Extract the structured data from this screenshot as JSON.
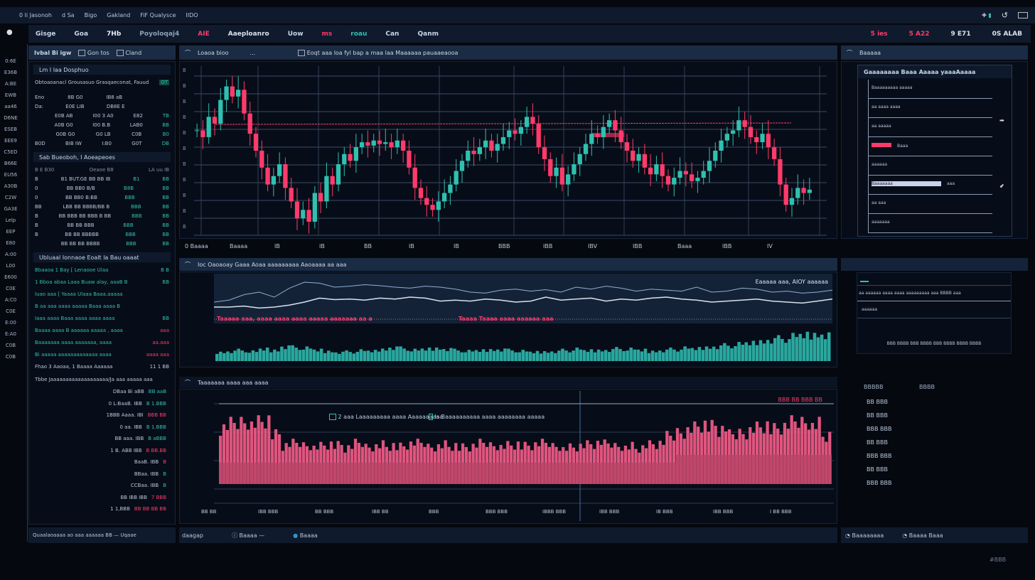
{
  "topbar": {
    "title": "0 li Jasonoh",
    "menus": [
      "d Sa",
      "Bigo",
      "Gakland",
      "FiF Qualysce",
      "IIDO"
    ],
    "right_icons": [
      "plus-icon",
      "refresh-icon",
      "window-icon"
    ]
  },
  "toolbar": {
    "items": [
      {
        "label": "Gisge",
        "color": "#c9d6e6"
      },
      {
        "label": "Goa",
        "color": "#c9d6e6"
      },
      {
        "label": "7Hb",
        "color": "#e6eef8"
      },
      {
        "label": "Poyoloqaj4",
        "color": "#8fa0b6"
      },
      {
        "label": "AIE",
        "color": "#ff3b6b"
      },
      {
        "label": "Aaeploanro",
        "color": "#d8e2ee"
      },
      {
        "label": "Uow",
        "color": "#c9d6e6"
      },
      {
        "label": "ms",
        "color": "#ff3b6b"
      },
      {
        "label": "roau",
        "color": "#2fc0b0"
      },
      {
        "label": "Can",
        "color": "#c9d6e6"
      },
      {
        "label": "Qanm",
        "color": "#c9d6e6"
      }
    ],
    "right": [
      {
        "label": "5 ies",
        "color": "#ff3b6b"
      },
      {
        "label": "5 A22",
        "color": "#ff3b6b"
      },
      {
        "label": "9 E71",
        "color": "#d8e2ee"
      },
      {
        "label": "0S ALAB",
        "color": "#d8e2ee"
      }
    ]
  },
  "rail": {
    "items": [
      "0:6E",
      "E36B",
      "A:BE",
      "EWB",
      "aa46",
      "D6NE",
      "ESEB",
      "EEE9",
      "C5ED",
      "B66E",
      "EU56",
      "A30B",
      "C2W",
      "GA3E",
      "Lelp",
      "EEP",
      "E80",
      "A:00",
      "L00",
      "E600",
      "C0E",
      "A:C0",
      "C0E",
      "E:00",
      "E:A0",
      "C0B",
      "C0B"
    ]
  },
  "left_panel": {
    "header": {
      "title": "Ivbal Bi igw",
      "tab1": "Gon tos",
      "tab2": "Cland"
    },
    "section1": {
      "title": "Lm I laa Dosphuo",
      "subtitle": "Obtoaoanacl Grousasuo Grasqaeconat,  Fauud",
      "badge": "OT",
      "rows": [
        [
          "Eno",
          "8B G0",
          "IB8 aB",
          "",
          ""
        ],
        [
          "Da:",
          "E0E LIB",
          "DB8E E",
          "",
          ""
        ],
        [
          "",
          "E0B AB",
          "I00 3 A0",
          "E82",
          "TB"
        ],
        [
          "",
          "A0B G0",
          "I00 B.B",
          "LAB0",
          "BB"
        ],
        [
          "",
          "G0B G0",
          "G0 LB",
          "C0B",
          "B0"
        ],
        [
          "B0D",
          "BIB IW",
          "I:B0",
          "G0T",
          "DB"
        ]
      ]
    },
    "section2": {
      "title": "Sab Bueoboh, I Aoeapeoes",
      "head": [
        "B E B30",
        "Oeaoe B8",
        "LA uu IB"
      ],
      "rows": [
        [
          "B",
          "B1 BUT.GE BB BB IB",
          "B1",
          "BB"
        ],
        [
          "0",
          "BB BB0 B/B",
          "B8B",
          "BB"
        ],
        [
          "0",
          "BB BB0 B:BB",
          "BBB",
          "BB"
        ],
        [
          "BB",
          "LBB BB BBBB/BB B",
          "BBB",
          "BB"
        ],
        [
          "B",
          "BB BBB BB BBB B BB",
          "BBB",
          "BB"
        ],
        [
          "B",
          "BB BB BBB",
          "BBB",
          "BB"
        ],
        [
          "B",
          "BB BB BBBBB",
          "BBB",
          "BB"
        ],
        [
          "",
          "BB BB BB BBBB",
          "BBB",
          "BB"
        ]
      ]
    },
    "section3": {
      "title": "Ubluaal Ionnaoe Eoalt la Bau oaaat",
      "lines": [
        {
          "t": "Bbaaoa 1 Bay [ Lenaooe Ulaa",
          "v": "B B"
        },
        {
          "t": "1 Bboa abaa  Laaa  Buaw alay, aaaB B",
          "v": "BB"
        },
        {
          "t": "Iuao aaa [ Yaaaa Ulaaa  Baaa.aaaaa",
          "v": ""
        },
        {
          "t": "B aa aaa  aaaa aaaaa  Baaa aaaa B",
          "v": ""
        },
        {
          "t": "Iaaa aaaa  Baaa aaaa aaaa aaaa",
          "v": "BB"
        },
        {
          "t": "Baaaa aaaa B aaaaaa aaaaa , aaaa",
          "v": "aaa",
          "red": true
        },
        {
          "t": "Baaaaaaa aaaa aaaaaaa, aaaa",
          "v": "aa.aaa",
          "red": true
        },
        {
          "t": "Bi aaaaa aaaaaaaaaaaaa  aaaa",
          "v": "aaaa aaa",
          "red": true
        }
      ]
    },
    "summary": [
      {
        "t": "Fhao 3 Aaoaa,  1 Baaaa Aaaaaa",
        "v": "11 1 BB"
      },
      {
        "t": "Tbbe Jaaaaaaaaaaaaaaaaaaa/Ja aaa aaaaa aaa",
        "v": ""
      }
    ],
    "orders": [
      [
        "DBaa  Bi aBB",
        "BB aaB",
        "g"
      ],
      [
        "0 L:BaaB. IBB",
        "B 1.BBB",
        "g"
      ],
      [
        "1BBB Aaaa. IBI",
        "BBB  BB",
        "r"
      ],
      [
        "0 aa. IBB",
        "B 1.BBB",
        "g"
      ],
      [
        "BB aaa. IBB",
        "B aBBB",
        "g"
      ],
      [
        "1 B. ABB  IBB",
        "B BB.BB",
        "r"
      ],
      [
        "BaaB. IBB",
        "B",
        "r"
      ],
      [
        "BBaa. IBB",
        "B",
        "g"
      ],
      [
        "CCBaa. IBB",
        "B",
        "g"
      ],
      [
        "BB IBB IBB",
        "7 BBB",
        "r"
      ],
      [
        "1  1,BBB",
        "BB BB BB BB",
        "r"
      ]
    ],
    "footer": "Quaalaoaaaa ao aaa aaaaaa BB — Uqaae"
  },
  "main_chart": {
    "header": {
      "title": "Loaoa bioo",
      "more": "...",
      "note": "Eoqt aaa loa fyl bap a maa laa Maaaaaa pauaaeaooa"
    },
    "y_ticks": [
      "B",
      "B",
      "B",
      "B",
      "B",
      "B",
      "B",
      "B",
      "B",
      "B",
      "B"
    ],
    "x_labels": [
      "0 Baaaa",
      "Baaaa",
      "IB",
      "IB",
      "BB",
      "IB",
      "IB",
      "BBB",
      "IBB",
      "IBV",
      "IBB",
      "Baaa",
      "IBB",
      "IV"
    ],
    "resistance_label": "a aaaa",
    "colors": {
      "up": "#2fc0b0",
      "down": "#ff3b6b",
      "grid": "#3b4c66"
    }
  },
  "chart_data": [
    {
      "type": "candlestick",
      "title": "",
      "ylim": [
        0,
        100
      ],
      "closes": [
        62,
        58,
        70,
        66,
        80,
        88,
        82,
        86,
        72,
        60,
        50,
        40,
        30,
        35,
        42,
        28,
        20,
        10,
        15,
        8,
        25,
        20,
        35,
        30,
        42,
        48,
        44,
        52,
        55,
        53,
        56,
        54,
        55,
        52,
        56,
        50,
        40,
        28,
        22,
        18,
        15,
        20,
        25,
        30,
        38,
        44,
        50,
        48,
        52,
        56,
        50,
        54,
        58,
        62,
        60,
        64,
        70,
        66,
        52,
        45,
        35,
        40,
        30,
        36,
        42,
        48,
        54,
        60,
        58,
        64,
        68,
        62,
        55,
        50,
        44,
        48,
        40,
        36,
        42,
        35,
        30,
        34,
        38,
        36,
        32,
        34,
        38,
        44,
        50,
        56,
        60,
        62,
        68,
        64,
        58,
        55,
        60,
        52,
        45,
        30,
        18,
        22,
        28,
        25,
        27
      ]
    },
    {
      "type": "line",
      "title": "",
      "series": [
        {
          "values": [
            40,
            44,
            55,
            60,
            50,
            68,
            80,
            78,
            70,
            72,
            75,
            73,
            70,
            68,
            72,
            70,
            66,
            60,
            58,
            64,
            66,
            62,
            65,
            60,
            70,
            66,
            72,
            68,
            62,
            66,
            64,
            62,
            70,
            60,
            62,
            68,
            66,
            60,
            62,
            58,
            60,
            64
          ]
        },
        {
          "values": [
            30,
            30,
            32,
            28,
            30,
            34,
            40,
            48,
            45,
            46,
            44,
            48,
            46,
            50,
            48,
            42,
            44,
            42,
            46,
            44,
            40,
            42,
            50,
            44,
            46,
            48,
            42,
            46,
            44,
            48,
            50,
            46,
            44,
            40,
            42,
            44,
            46,
            42,
            40,
            38,
            42,
            46
          ]
        }
      ]
    },
    {
      "type": "bar",
      "title": "",
      "values": [
        18,
        20,
        22,
        19,
        24,
        22,
        30,
        28,
        26,
        22,
        20,
        18,
        19,
        21,
        20,
        24,
        28,
        26,
        22,
        24,
        26,
        25,
        22,
        20,
        21,
        23,
        24,
        22,
        20,
        18,
        19,
        20,
        22,
        24,
        21,
        22,
        23,
        25,
        24,
        22,
        20,
        22,
        24,
        26,
        25,
        28,
        30,
        32,
        34,
        36,
        40,
        44,
        46,
        50,
        52,
        54,
        55
      ]
    },
    {
      "type": "bar",
      "title": "",
      "values": [
        80,
        86,
        90,
        88,
        92,
        70,
        55,
        58,
        56,
        54,
        57,
        55,
        52,
        58,
        54,
        56,
        55,
        53,
        57,
        58,
        54,
        56,
        55,
        52,
        54,
        58,
        56,
        55,
        57,
        54,
        56,
        58,
        55,
        52,
        54,
        56,
        58,
        57,
        55,
        54,
        52,
        56,
        58,
        68,
        75,
        80,
        85,
        82,
        78,
        70,
        74,
        80,
        84,
        78,
        82,
        88,
        90,
        86,
        70
      ]
    }
  ],
  "indicator_panel": {
    "header": "Ioc Oaoaoay Gaaa Aoaa aaaaaaaaa Aaoaaaa aa aaa",
    "legend": "Eaaaaa aaa, AIOY aaaaaa",
    "red_notes": [
      "Taaaaa aaa, aaaa aaaa aaaa aaaaa aaaaaaa aa a",
      "Taaaa  Taaaa aaaa aaaaaa aaa"
    ]
  },
  "volume_panel": {
    "header": "Taaaaaaa aaaa aaa aaaa",
    "legend1": "2 aaa  Laaaaaaaaa aaaa Aaaaaaaaaa",
    "legend2": "Is Baaaaaaaaaa aaaa aaaaaaaa aaaaa",
    "top_right": "BBB  BB  BBB BB",
    "x_labels": [
      "BB BB",
      "IBB BBB",
      "BB BBB",
      "IBB BB",
      "BBB",
      "BBB BBB",
      "IBBB BBB",
      "IBB BBB",
      "IB BBB",
      "IBB BBB",
      "I BB BBB"
    ]
  },
  "bottom_bar": {
    "items": [
      "daagap",
      "Baaaa",
      "Baaaa"
    ],
    "right": [
      "Baaaaaaaa",
      "Baaaa Baaa"
    ]
  },
  "right_panel": {
    "header": "Baaaaa",
    "box_title": "Gaaaaaaaa Baaa Aaaaa yaaaAaaaa",
    "rows": [
      "Baaaaaaaaa aaaaa",
      "aa aaaa aaaa",
      "aa aaaaa",
      "Baaa",
      "aaaaaa",
      "aaa",
      "aa aaa",
      "aaaaaaa"
    ],
    "highlight": "Baaaaaaa",
    "section2": {
      "row1": "aa aaaaaa  aaaa aaaa   aaaaaaaaa  aaa  BBBB  aaa",
      "row2": "aaaaaa",
      "footer": "BBB BBBB BBB BBBB BBB BBBB  BBBB BBBB"
    },
    "table_head": [
      "BBBBB",
      "BBBB"
    ],
    "values": [
      "BB BBB",
      "BB BBB",
      "BBB BBB",
      "BB BBB",
      "BBB BBB",
      "BB BBB",
      "BBB BBB"
    ],
    "corner": "#BBB"
  }
}
